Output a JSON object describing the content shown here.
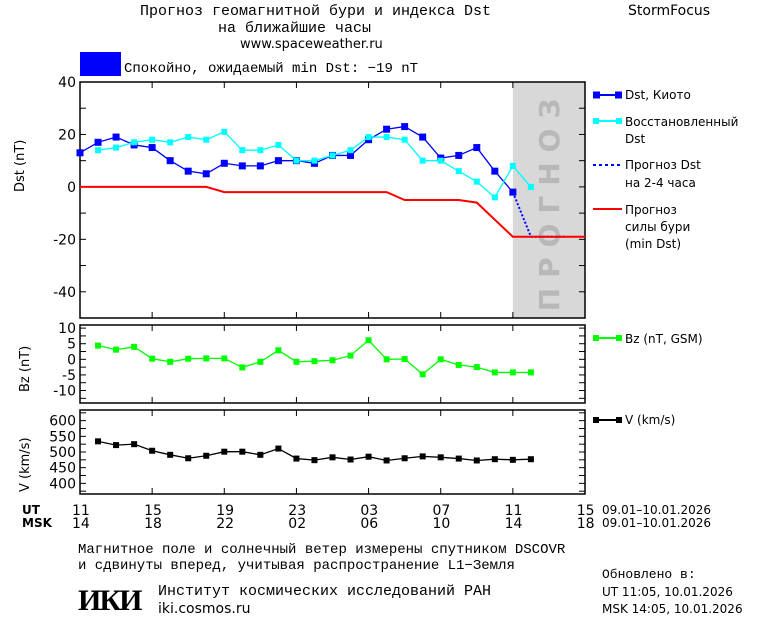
{
  "header": {
    "title_line1": "Прогноз геомагнитной бури и индекса Dst",
    "title_line2": "на ближайшие часы",
    "url": "www.spaceweather.ru",
    "brand": "StormFocus",
    "status_text": "Спокойно, ожидаемый min Dst: −19 nT",
    "status_color": "#0000ff"
  },
  "legend": {
    "dst_kyoto": "Dst, Киото",
    "dst_restored_1": "Восстановленный",
    "dst_restored_2": "Dst",
    "dst_forecast_1": "Прогноз Dst",
    "dst_forecast_2": "на 2-4 часа",
    "storm_forecast_1": "Прогноз",
    "storm_forecast_2": "силы бури",
    "storm_forecast_3": "(min Dst)",
    "bz": "Bz (nT, GSM)",
    "v": "V (km/s)"
  },
  "x_axis": {
    "ut_label": "UT",
    "msk_label": "MSK",
    "ut_ticks": [
      "11",
      "15",
      "19",
      "23",
      "03",
      "07",
      "11",
      "15"
    ],
    "msk_ticks": [
      "14",
      "18",
      "22",
      "02",
      "06",
      "10",
      "14",
      "18"
    ],
    "date_range_ut": "09.01–10.01.2026",
    "date_range_msk": "09.01–10.01.2026"
  },
  "footer": {
    "line1": "Магнитное поле и солнечный ветер измерены спутником DSCOVR",
    "line2": "и сдвинуты вперед, учитывая распространение L1−Земля",
    "institute": "Институт космических исследований РАН",
    "site": "iki.cosmos.ru",
    "logo_text": "ИКИ",
    "updated_label": "Обновлено в:",
    "updated_ut": "UT   11:05, 10.01.2026",
    "updated_msk": "MSK 14:05, 10.01.2026"
  },
  "chart_data": [
    {
      "type": "line",
      "ylabel": "Dst (nT)",
      "ylim": [
        -50,
        40
      ],
      "yticks": [
        40,
        20,
        0,
        -20,
        -40
      ],
      "x_unit": "hours since 09.01 11:00 UT",
      "xlim": [
        0,
        28
      ],
      "forecast_region": {
        "from": 24,
        "to": 28,
        "label": "ПРОГНОЗ",
        "color": "#d8d8d8"
      },
      "series": [
        {
          "name": "Dst, Киото",
          "color": "#0000ff",
          "marker": "square",
          "x": [
            0,
            1,
            2,
            3,
            4,
            5,
            6,
            7,
            8,
            9,
            10,
            11,
            12,
            13,
            14,
            15,
            16,
            17,
            18,
            19,
            20,
            21,
            22,
            23,
            24
          ],
          "y": [
            13,
            17,
            19,
            16,
            15,
            10,
            6,
            5,
            9,
            8,
            8,
            10,
            10,
            9,
            12,
            12,
            18,
            22,
            23,
            19,
            11,
            12,
            15,
            6,
            -2
          ]
        },
        {
          "name": "Восстановленный Dst",
          "color": "#00ffff",
          "marker": "square",
          "x": [
            1,
            2,
            3,
            4,
            5,
            6,
            7,
            8,
            9,
            10,
            11,
            12,
            13,
            14,
            15,
            16,
            17,
            18,
            19,
            20,
            21,
            22,
            23,
            24,
            25
          ],
          "y": [
            14,
            15,
            17,
            18,
            17,
            19,
            18,
            21,
            14,
            14,
            16,
            10,
            10,
            12,
            14,
            19,
            19,
            18,
            10,
            10,
            6,
            2,
            -4,
            8,
            0
          ]
        },
        {
          "name": "Прогноз Dst на 2-4 часа",
          "color": "#0000ff",
          "style": "dotted",
          "x": [
            24,
            25,
            27
          ],
          "y": [
            -2,
            -19,
            -19
          ]
        },
        {
          "name": "Прогноз силы бури (min Dst)",
          "color": "#ff0000",
          "x": [
            0,
            7,
            8,
            17,
            18,
            21,
            22,
            24,
            28
          ],
          "y": [
            0,
            0,
            -2,
            -2,
            -5,
            -5,
            -6,
            -19,
            -19
          ]
        }
      ]
    },
    {
      "type": "line",
      "ylabel": "Bz (nT)",
      "ylim": [
        -14,
        11
      ],
      "yticks": [
        10,
        5,
        0,
        -5,
        -10
      ],
      "xlim": [
        0,
        28
      ],
      "series": [
        {
          "name": "Bz (nT, GSM)",
          "color": "#00ff00",
          "marker": "square",
          "x": [
            1,
            2,
            3,
            4,
            5,
            6,
            7,
            8,
            9,
            10,
            11,
            12,
            13,
            14,
            15,
            16,
            17,
            18,
            19,
            20,
            21,
            22,
            23,
            24,
            25
          ],
          "y": [
            4.4,
            3.1,
            4.0,
            0.2,
            -0.8,
            0.2,
            0.3,
            0.3,
            -2.6,
            -0.8,
            2.9,
            -0.8,
            -0.6,
            -0.3,
            1.2,
            6.1,
            0,
            0.1,
            -4.8,
            0,
            -1.8,
            -2.5,
            -4.2,
            -4.2,
            -4.2
          ]
        }
      ]
    },
    {
      "type": "line",
      "ylabel": "V (km/s)",
      "ylim": [
        366,
        634
      ],
      "yticks": [
        600,
        550,
        500,
        450,
        400
      ],
      "xlim": [
        0,
        28
      ],
      "series": [
        {
          "name": "V (km/s)",
          "color": "#000000",
          "marker": "square",
          "x": [
            1,
            2,
            3,
            4,
            5,
            6,
            7,
            8,
            9,
            10,
            11,
            12,
            13,
            14,
            15,
            16,
            17,
            18,
            19,
            20,
            21,
            22,
            23,
            24,
            25
          ],
          "y": [
            534,
            522,
            525,
            504,
            491,
            480,
            488,
            501,
            501,
            491,
            511,
            479,
            474,
            483,
            476,
            485,
            473,
            480,
            486,
            483,
            479,
            473,
            477,
            475,
            477
          ]
        }
      ]
    }
  ]
}
